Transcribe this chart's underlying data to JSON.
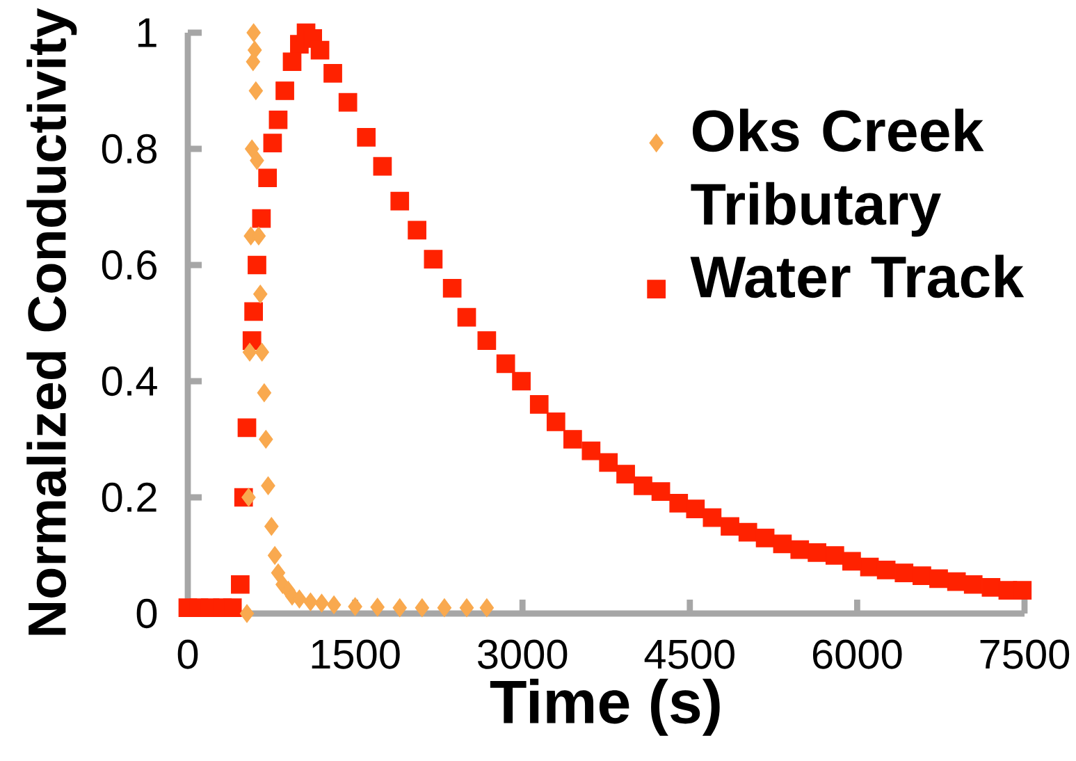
{
  "chart_data": {
    "type": "scatter",
    "xlabel": "Time (s)",
    "ylabel": "Normalized Conductivity",
    "xlim": [
      0,
      7500
    ],
    "ylim": [
      0,
      1
    ],
    "xticks": [
      0,
      1500,
      3000,
      4500,
      6000,
      7500
    ],
    "yticks": [
      0,
      0.2,
      0.4,
      0.6,
      0.8,
      1
    ],
    "legend": "top right",
    "grid": false,
    "series": [
      {
        "name": "Oks Creek Tributary",
        "color": "#f9a94f",
        "marker": "diamond",
        "x": [
          530,
          545,
          555,
          565,
          575,
          585,
          590,
          600,
          610,
          620,
          635,
          650,
          665,
          685,
          700,
          720,
          750,
          780,
          810,
          850,
          900,
          935,
          1000,
          1100,
          1200,
          1310,
          1500,
          1700,
          1900,
          2100,
          2300,
          2500,
          2680
        ],
        "values": [
          0,
          0.2,
          0.45,
          0.65,
          0.8,
          0.95,
          1,
          0.97,
          0.9,
          0.78,
          0.65,
          0.55,
          0.45,
          0.38,
          0.3,
          0.22,
          0.15,
          0.1,
          0.07,
          0.05,
          0.04,
          0.03,
          0.025,
          0.02,
          0.018,
          0.015,
          0.012,
          0.011,
          0.01,
          0.01,
          0.01,
          0.01,
          0.01
        ]
      },
      {
        "name": "Water Track",
        "color": "#ff2200",
        "marker": "square",
        "x": [
          0,
          100,
          200,
          310,
          400,
          470,
          500,
          530,
          575,
          590,
          620,
          660,
          715,
          760,
          810,
          870,
          935,
          1000,
          1060,
          1120,
          1185,
          1300,
          1435,
          1600,
          1745,
          1900,
          2055,
          2200,
          2370,
          2500,
          2680,
          2850,
          2990,
          3150,
          3300,
          3450,
          3615,
          3770,
          3925,
          4080,
          4240,
          4400,
          4550,
          4700,
          4860,
          5020,
          5175,
          5330,
          5485,
          5640,
          5800,
          5950,
          6110,
          6260,
          6420,
          6580,
          6730,
          6890,
          7040,
          7200,
          7350,
          7480
        ],
        "values": [
          0.01,
          0.01,
          0.01,
          0.01,
          0.01,
          0.05,
          0.2,
          0.32,
          0.47,
          0.52,
          0.6,
          0.68,
          0.75,
          0.81,
          0.85,
          0.9,
          0.95,
          0.98,
          1,
          0.99,
          0.97,
          0.93,
          0.88,
          0.82,
          0.77,
          0.71,
          0.66,
          0.61,
          0.56,
          0.51,
          0.47,
          0.43,
          0.4,
          0.36,
          0.33,
          0.3,
          0.28,
          0.26,
          0.24,
          0.22,
          0.21,
          0.19,
          0.18,
          0.165,
          0.15,
          0.14,
          0.13,
          0.12,
          0.11,
          0.105,
          0.1,
          0.09,
          0.08,
          0.075,
          0.07,
          0.065,
          0.06,
          0.055,
          0.05,
          0.045,
          0.04,
          0.04
        ]
      }
    ]
  }
}
